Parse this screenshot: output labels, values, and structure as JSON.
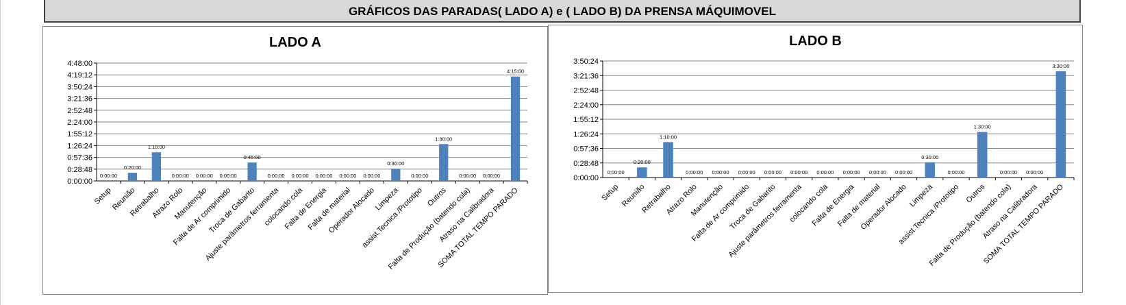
{
  "banner": {
    "title": "GRÁFICOS DAS PARADAS( LADO A) e ( LADO B) DA PRENSA MÁQUIMOVEL"
  },
  "colors": {
    "bar": "#4f81bd",
    "grid": "#868686",
    "text": "#000000"
  },
  "chart_data": [
    {
      "type": "bar",
      "title": "LADO A",
      "categories": [
        "Setup",
        "Reunião",
        "Retrabalho",
        "Atrazo Rolo",
        "Manutenção",
        "Falta de Ar comprimido",
        "Troca de Gabarito",
        "Ajuste parâmetros ferramenta",
        "colocando cola",
        "Falta de Energia",
        "Falta de material",
        "Operador Alocado",
        "Limpeza",
        "assist.Tecnica /Prototipo",
        "Outros",
        "Falta de Produção (batendo cola)",
        "Atraso na Calibradora",
        "SOMA TOTAL TEMPO PARADO"
      ],
      "values": [
        "0:00:00",
        "0:20:00",
        "1:10:00",
        "0:00:00",
        "0:00:00",
        "0:00:00",
        "0:45:00",
        "0:00:00",
        "0:00:00",
        "0:00:00",
        "0:00:00",
        "0:00:00",
        "0:30:00",
        "0:00:00",
        "1:30:00",
        "0:00:00",
        "0:00:00",
        "4:15:00"
      ],
      "yticks": [
        "0:00:00",
        "0:28:48",
        "0:57:36",
        "1:26:24",
        "1:55:12",
        "2:24:00",
        "2:52:48",
        "3:21:36",
        "3:50:24",
        "4:19:12",
        "4:48:00"
      ],
      "ylim": [
        "0:00:00",
        "4:48:00"
      ],
      "grid": true
    },
    {
      "type": "bar",
      "title": "LADO B",
      "categories": [
        "Setup",
        "Reunião",
        "Retrabalho",
        "Atrazo Rolo",
        "Manutenção",
        "Falta de Ar comprimido",
        "Troca de Gabarito",
        "Ajuste parâmetros ferramenta",
        "colocando cola",
        "Falta de Energia",
        "Falta de material",
        "Operador Alocado",
        "Limpeza",
        "assist.Tecnica /Prototipo",
        "Outros",
        "Falta de Produção (batendo cola)",
        "Atraso na Calibradora",
        "SOMA TOTAL TEMPO PARADO"
      ],
      "values": [
        "0:00:00",
        "0:20:00",
        "1:10:00",
        "0:00:00",
        "0:00:00",
        "0:00:00",
        "0:00:00",
        "0:00:00",
        "0:00:00",
        "0:00:00",
        "0:00:00",
        "0:00:00",
        "0:30:00",
        "0:00:00",
        "1:30:00",
        "0:00:00",
        "0:00:00",
        "3:30:00"
      ],
      "yticks": [
        "0:00:00",
        "0:28:48",
        "0:57:36",
        "1:26:24",
        "1:55:12",
        "2:24:00",
        "2:52:48",
        "3:21:36",
        "3:50:24"
      ],
      "ylim": [
        "0:00:00",
        "3:50:24"
      ],
      "grid": true
    }
  ]
}
